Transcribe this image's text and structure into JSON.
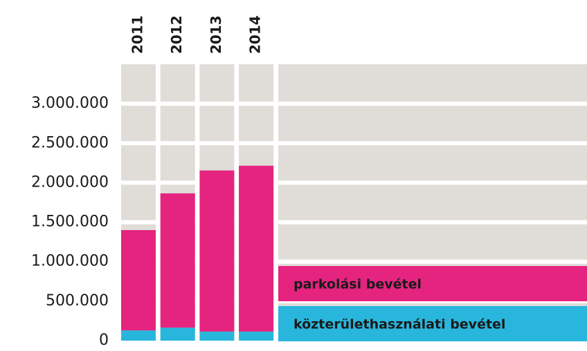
{
  "chart_data": {
    "type": "stacked_bar",
    "categories": [
      "2011",
      "2012",
      "2013",
      "2014"
    ],
    "series": [
      {
        "name": "közterülethasználati bevétel",
        "color": "#29b6dc",
        "values": [
          130000,
          165000,
          115000,
          115000
        ]
      },
      {
        "name": "parkolási bevétel",
        "color": "#e5247f",
        "values": [
          1270000,
          1700000,
          2040000,
          2100000
        ]
      }
    ],
    "ylim": [
      0,
      3500000
    ],
    "yticks": [
      0,
      {
        "value": 500000,
        "label": "500.000"
      },
      {
        "value": 1000000,
        "label": "1.000.000"
      },
      {
        "value": 1500000,
        "label": "1.500.000"
      },
      {
        "value": 2000000,
        "label": "2.000.000"
      },
      {
        "value": 2500000,
        "label": "2.500.000"
      },
      {
        "value": 3000000,
        "label": "3.000.000"
      }
    ],
    "grid": true,
    "background_color": "#e0ddd8"
  }
}
